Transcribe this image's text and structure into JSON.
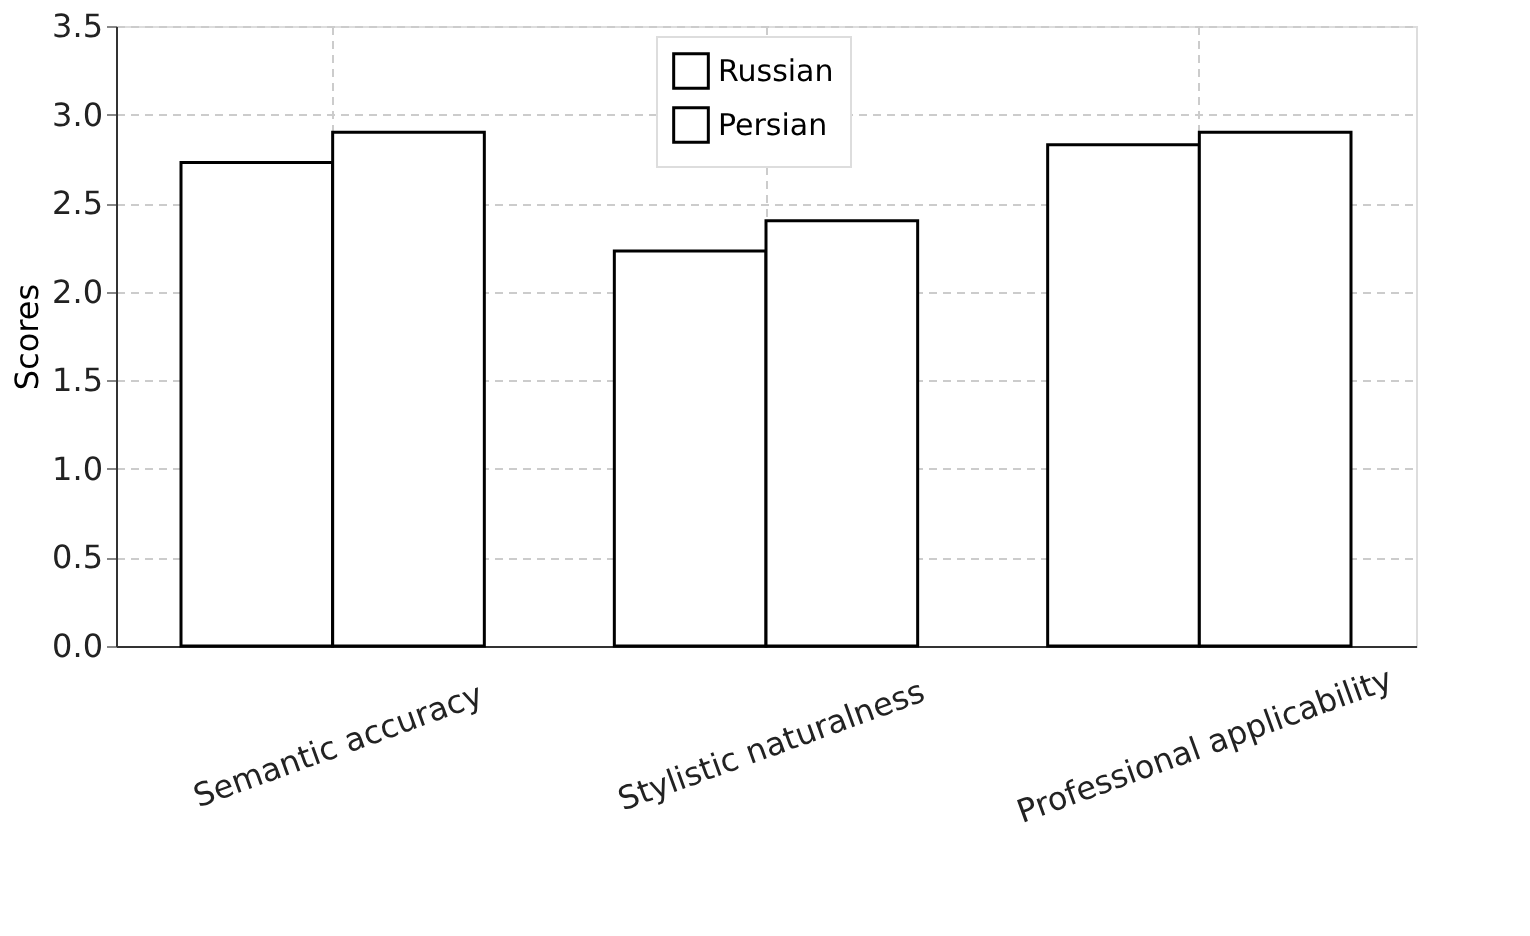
{
  "chart_data": {
    "type": "bar",
    "ylabel": "Scores",
    "categories": [
      "Semantic accuracy",
      "Stylistic naturalness",
      "Professional applicability"
    ],
    "series": [
      {
        "name": "Russian",
        "color": "#ffffff",
        "values": [
          2.73,
          2.23,
          2.83
        ]
      },
      {
        "name": "Persian",
        "color": "#ffffff",
        "values": [
          2.9,
          2.4,
          2.9
        ]
      }
    ],
    "ylim": [
      0,
      3.5
    ],
    "yticks": [
      {
        "value": 0,
        "label": "0.0"
      },
      0.5,
      {
        "value": 1,
        "label": "1.0"
      },
      1.5,
      {
        "value": 2,
        "label": "2.0"
      },
      2.5,
      {
        "value": 3,
        "label": "3.0"
      },
      3.5
    ],
    "grid": true,
    "legend": "top"
  }
}
